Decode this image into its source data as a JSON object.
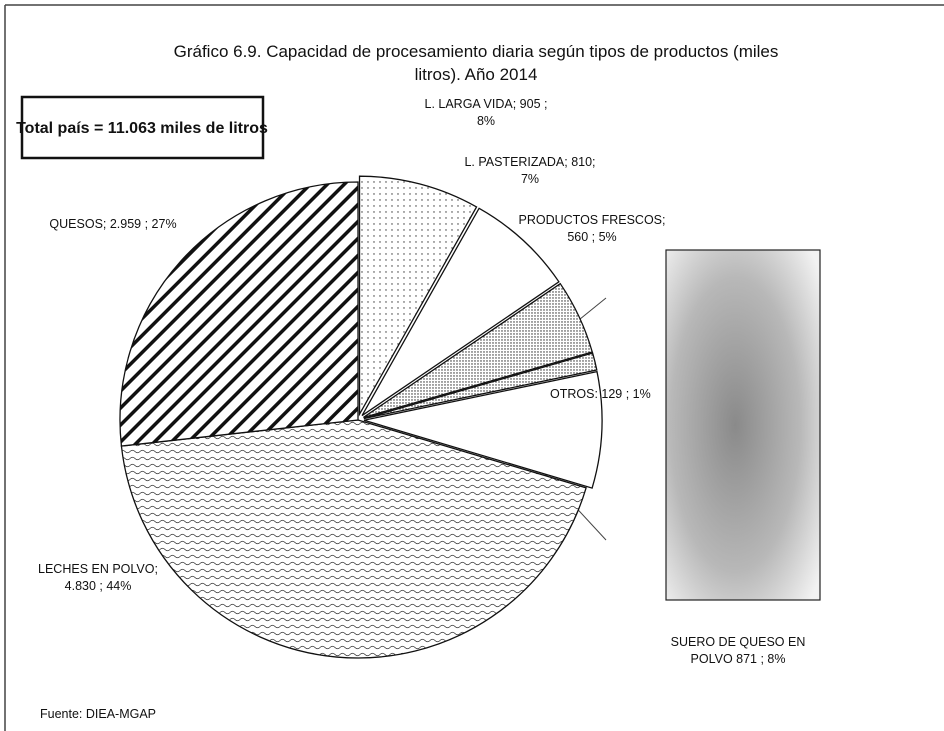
{
  "chart_data": {
    "type": "pie",
    "title_lines": [
      "Gráfico 6.9. Capacidad de procesamiento diaria según tipos de productos (miles",
      "litros).  Año 2014"
    ],
    "annotation": "Total país = 11.063 miles de litros",
    "source": "Fuente: DIEA-MGAP",
    "labels": [
      [
        "L. LARGA VIDA;  905 ;",
        "8%"
      ],
      [
        "L. PASTERIZADA;  810;",
        "7%"
      ],
      [
        "PRODUCTOS FRESCOS;",
        "560 ; 5%"
      ],
      [
        "OTROS:  129 ; 1%"
      ],
      [
        "SUERO DE QUESO EN",
        "POLVO  871 ; 8%"
      ],
      [
        "LECHES EN POLVO;",
        "4.830 ; 44%"
      ],
      [
        "QUESOS;  2.959 ; 27%"
      ]
    ],
    "values": [
      905,
      810,
      560,
      129,
      871,
      4830,
      2959
    ],
    "value_labels": [
      "905",
      "810",
      "560",
      "129",
      "871",
      "4.830",
      "2.959"
    ],
    "percents": [
      8,
      7,
      5,
      1,
      8,
      44,
      27
    ],
    "fills": [
      "dots",
      "none",
      "dots-dense",
      "dots-dense",
      "none",
      "waves",
      "hatch"
    ],
    "bar_of_pie": 4
  }
}
